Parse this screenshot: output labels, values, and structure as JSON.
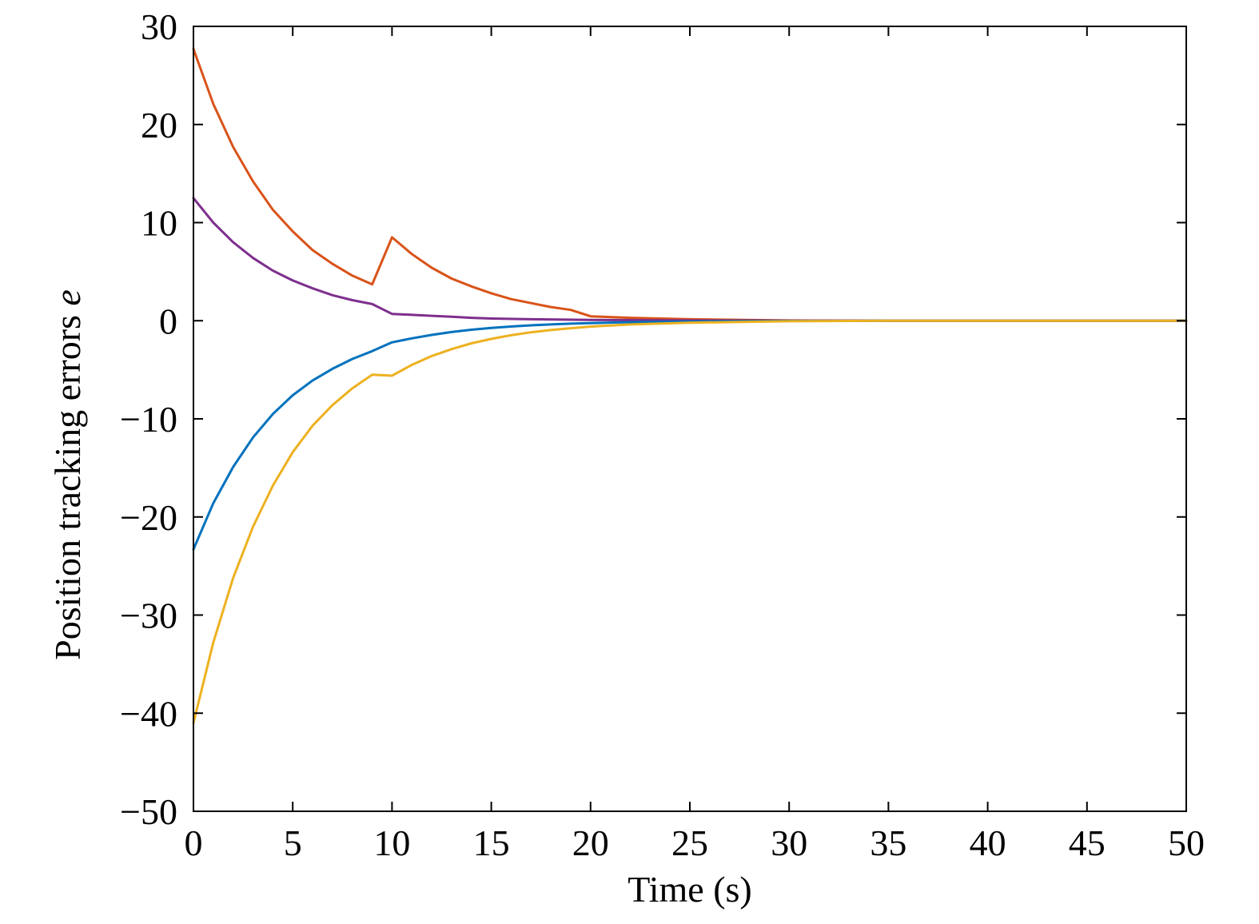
{
  "chart_data": {
    "type": "line",
    "title": "",
    "xlabel": "Time (s)",
    "ylabel_main": "Position tracking errors ",
    "ylabel_var": "e",
    "xlim": [
      0,
      50
    ],
    "ylim": [
      -50,
      30
    ],
    "xticks": [
      "0",
      "5",
      "10",
      "15",
      "20",
      "25",
      "30",
      "35",
      "40",
      "45",
      "50"
    ],
    "yticks": [
      "30",
      "20",
      "10",
      "0",
      "−10",
      "−20",
      "−30",
      "−40",
      "−50"
    ],
    "ytick_values": [
      30,
      20,
      10,
      0,
      -10,
      -20,
      -30,
      -40,
      -50
    ],
    "xtick_values": [
      0,
      5,
      10,
      15,
      20,
      25,
      30,
      35,
      40,
      45,
      50
    ],
    "grid": false,
    "legend": "none",
    "series": [
      {
        "color": "#d95319",
        "points": [
          [
            0,
            27.7
          ],
          [
            1,
            22.1
          ],
          [
            2,
            17.7
          ],
          [
            3,
            14.2
          ],
          [
            4,
            11.3
          ],
          [
            5,
            9.1
          ],
          [
            6,
            7.2
          ],
          [
            7,
            5.8
          ],
          [
            8,
            4.6
          ],
          [
            9,
            3.7
          ],
          [
            10,
            8.5
          ],
          [
            11,
            6.8
          ],
          [
            12,
            5.4
          ],
          [
            13,
            4.3
          ],
          [
            14,
            3.5
          ],
          [
            15,
            2.8
          ],
          [
            16,
            2.2
          ],
          [
            17,
            1.8
          ],
          [
            18,
            1.4
          ],
          [
            19,
            1.1
          ],
          [
            20,
            0.45
          ],
          [
            22,
            0.3
          ],
          [
            25,
            0.15
          ],
          [
            30,
            0.03
          ],
          [
            35,
            0.0
          ],
          [
            50,
            0.0
          ]
        ]
      },
      {
        "color": "#7e2f8e",
        "points": [
          [
            0,
            12.5
          ],
          [
            1,
            10.0
          ],
          [
            2,
            8.0
          ],
          [
            3,
            6.4
          ],
          [
            4,
            5.1
          ],
          [
            5,
            4.1
          ],
          [
            6,
            3.3
          ],
          [
            7,
            2.6
          ],
          [
            8,
            2.1
          ],
          [
            9,
            1.7
          ],
          [
            10,
            0.7
          ],
          [
            11,
            0.6
          ],
          [
            12,
            0.5
          ],
          [
            13,
            0.4
          ],
          [
            14,
            0.3
          ],
          [
            15,
            0.22
          ],
          [
            17,
            0.15
          ],
          [
            20,
            0.08
          ],
          [
            25,
            0.03
          ],
          [
            30,
            0.0
          ],
          [
            50,
            0.0
          ]
        ]
      },
      {
        "color": "#0072bd",
        "points": [
          [
            0,
            -23.3
          ],
          [
            1,
            -18.6
          ],
          [
            2,
            -14.9
          ],
          [
            3,
            -11.9
          ],
          [
            4,
            -9.5
          ],
          [
            5,
            -7.6
          ],
          [
            6,
            -6.1
          ],
          [
            7,
            -4.9
          ],
          [
            8,
            -3.9
          ],
          [
            9,
            -3.1
          ],
          [
            10,
            -2.2
          ],
          [
            11,
            -1.8
          ],
          [
            12,
            -1.45
          ],
          [
            13,
            -1.15
          ],
          [
            14,
            -0.92
          ],
          [
            15,
            -0.74
          ],
          [
            16,
            -0.59
          ],
          [
            17,
            -0.47
          ],
          [
            18,
            -0.38
          ],
          [
            19,
            -0.3
          ],
          [
            20,
            -0.24
          ],
          [
            22,
            -0.15
          ],
          [
            25,
            -0.08
          ],
          [
            30,
            -0.02
          ],
          [
            35,
            0.0
          ],
          [
            50,
            0.0
          ]
        ]
      },
      {
        "color": "#edb120",
        "points": [
          [
            0,
            -41.0
          ],
          [
            1,
            -32.8
          ],
          [
            2,
            -26.2
          ],
          [
            3,
            -21.0
          ],
          [
            4,
            -16.8
          ],
          [
            5,
            -13.4
          ],
          [
            6,
            -10.7
          ],
          [
            7,
            -8.6
          ],
          [
            8,
            -6.9
          ],
          [
            9,
            -5.5
          ],
          [
            10,
            -5.6
          ],
          [
            11,
            -4.5
          ],
          [
            12,
            -3.6
          ],
          [
            13,
            -2.9
          ],
          [
            14,
            -2.3
          ],
          [
            15,
            -1.85
          ],
          [
            16,
            -1.48
          ],
          [
            17,
            -1.18
          ],
          [
            18,
            -0.95
          ],
          [
            19,
            -0.76
          ],
          [
            20,
            -0.6
          ],
          [
            22,
            -0.38
          ],
          [
            25,
            -0.2
          ],
          [
            30,
            -0.05
          ],
          [
            35,
            0.0
          ],
          [
            50,
            0.0
          ]
        ]
      }
    ]
  }
}
